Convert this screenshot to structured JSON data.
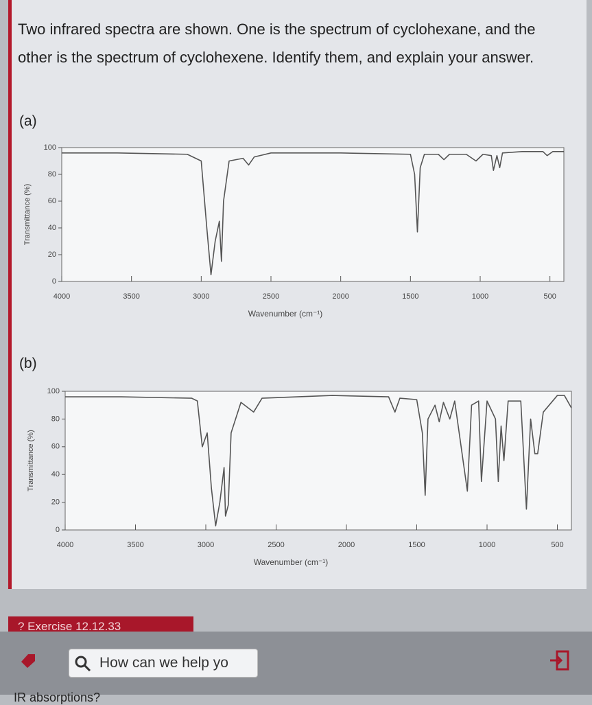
{
  "question": "Two infrared spectra are shown. One is the spectrum of cyclohexane, and the other is the spectrum of cyclohexene. Identify them, and explain your answer.",
  "parts": [
    "(a)",
    "(b)"
  ],
  "exercise": "? Exercise 12.12.33",
  "search_placeholder": "How can we help yo",
  "bottom_text": "IR absorptions?",
  "chart_data": [
    {
      "type": "line",
      "xlabel": "Wavenumber (cm⁻¹)",
      "ylabel": "Transmittance (%)",
      "color": "#555555",
      "xlim": [
        4000,
        400
      ],
      "ylim": [
        0,
        100
      ],
      "xticks": [
        4000,
        3500,
        3000,
        2500,
        2000,
        1500,
        1000,
        500
      ],
      "yticks": [
        0,
        20,
        40,
        60,
        80,
        100
      ],
      "x": [
        4000,
        3600,
        3100,
        3000,
        2960,
        2930,
        2900,
        2870,
        2855,
        2840,
        2800,
        2700,
        2660,
        2620,
        2500,
        2000,
        1500,
        1470,
        1450,
        1430,
        1400,
        1300,
        1260,
        1220,
        1100,
        1030,
        980,
        920,
        905,
        880,
        860,
        840,
        700,
        550,
        520,
        480,
        400
      ],
      "values": [
        96,
        96,
        95,
        90,
        40,
        5,
        30,
        45,
        15,
        60,
        90,
        92,
        87,
        93,
        96,
        96,
        95,
        80,
        37,
        85,
        95,
        95,
        91,
        95,
        95,
        90,
        95,
        94,
        83,
        94,
        85,
        96,
        97,
        97,
        94,
        97,
        97
      ]
    },
    {
      "type": "line",
      "xlabel": "Wavenumber (cm⁻¹)",
      "ylabel": "Transmittance (%)",
      "color": "#555555",
      "xlim": [
        4000,
        400
      ],
      "ylim": [
        0,
        100
      ],
      "xticks": [
        4000,
        3500,
        3000,
        2500,
        2000,
        1500,
        1000,
        500
      ],
      "yticks": [
        0,
        20,
        40,
        60,
        80,
        100
      ],
      "x": [
        4000,
        3600,
        3100,
        3060,
        3025,
        2990,
        2960,
        2930,
        2900,
        2870,
        2860,
        2840,
        2820,
        2750,
        2660,
        2600,
        2100,
        1700,
        1655,
        1620,
        1500,
        1460,
        1440,
        1420,
        1370,
        1340,
        1310,
        1265,
        1230,
        1140,
        1110,
        1060,
        1040,
        1000,
        940,
        920,
        900,
        880,
        850,
        760,
        720,
        690,
        660,
        640,
        600,
        500,
        450,
        400
      ],
      "values": [
        96,
        96,
        95,
        93,
        60,
        70,
        30,
        3,
        20,
        45,
        10,
        18,
        70,
        92,
        85,
        95,
        97,
        96,
        85,
        95,
        94,
        70,
        25,
        80,
        90,
        78,
        92,
        80,
        93,
        28,
        90,
        93,
        35,
        93,
        80,
        35,
        75,
        50,
        93,
        93,
        15,
        80,
        55,
        55,
        85,
        97,
        97,
        88
      ]
    }
  ]
}
